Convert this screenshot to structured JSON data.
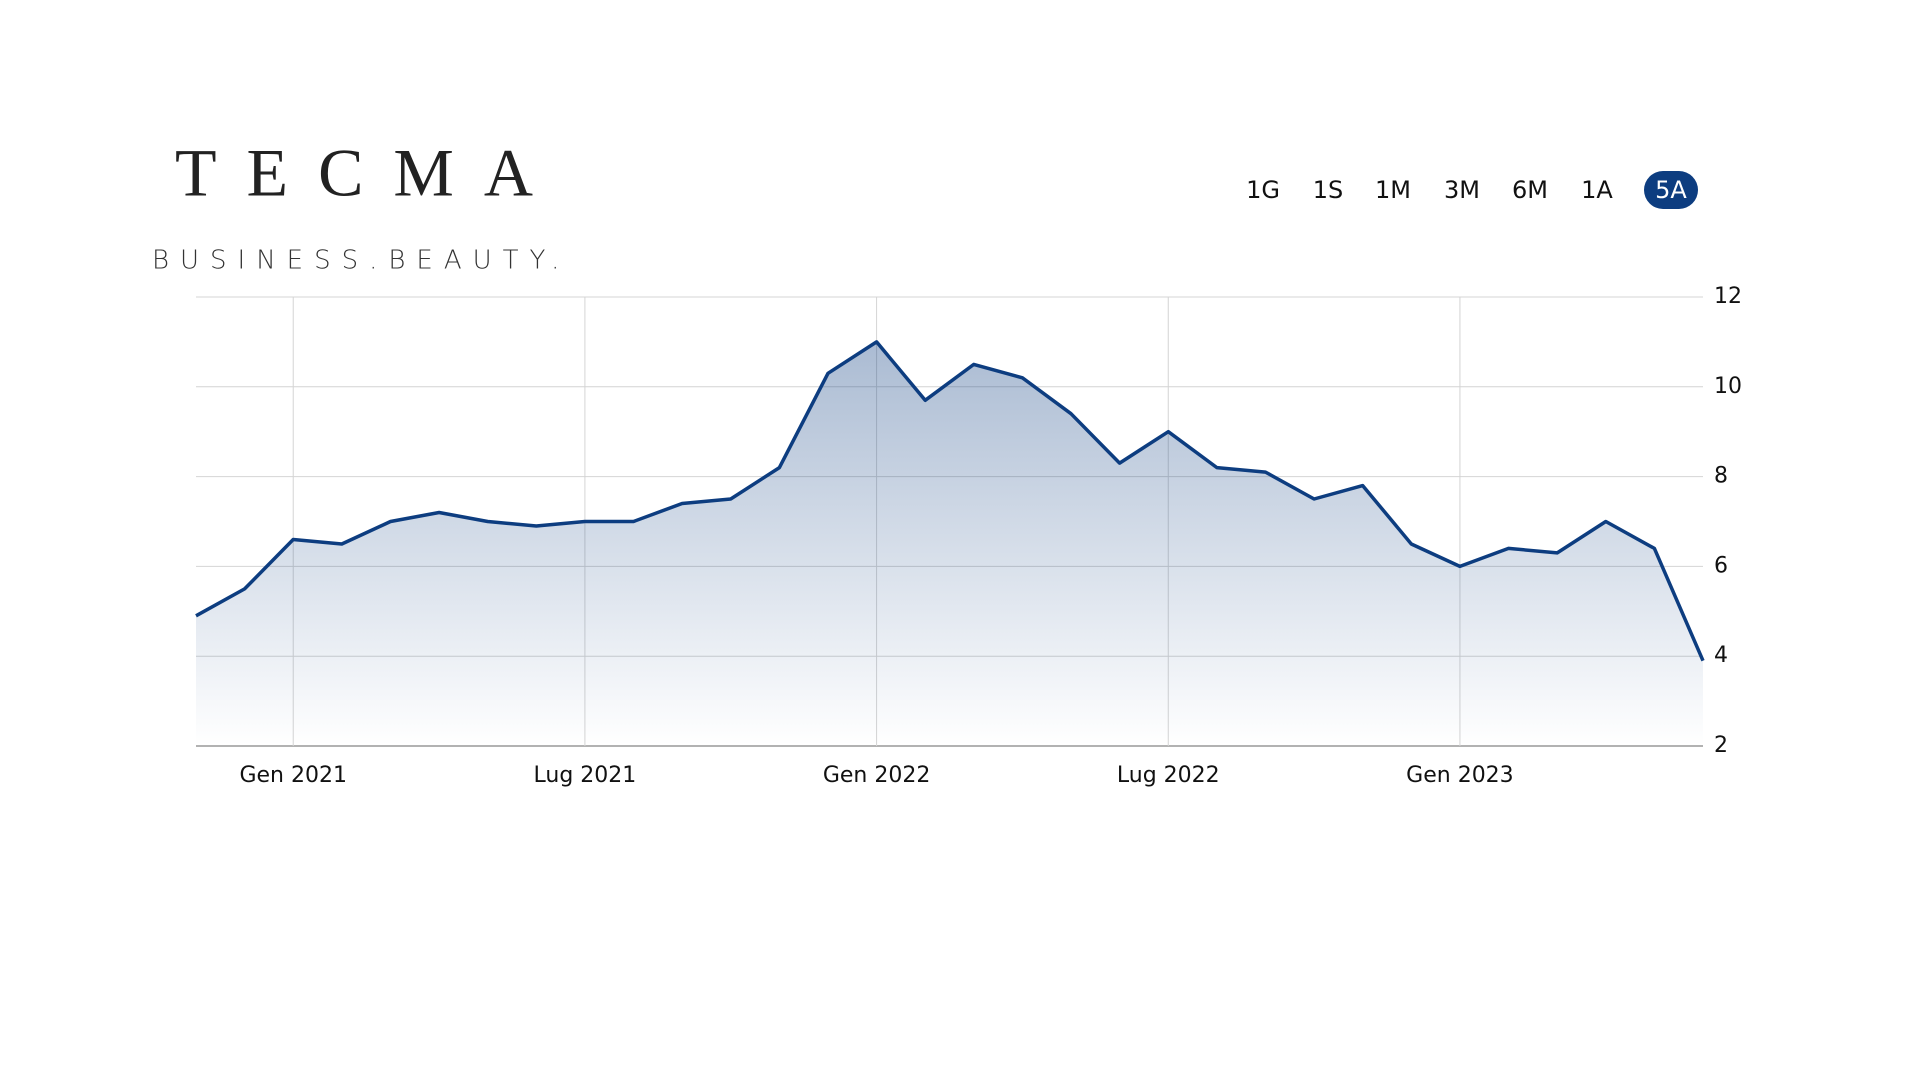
{
  "logo": {
    "name": "TECMA",
    "tagline": "BUSINESS.BEAUTY."
  },
  "range_buttons": [
    "1G",
    "1S",
    "1M",
    "3M",
    "6M",
    "1A",
    "5A"
  ],
  "active_range_index": 6,
  "chart_data": {
    "type": "line",
    "color": "#0d3d80",
    "grid": true,
    "x": [
      "2020-11",
      "2020-12",
      "2021-01",
      "2021-02",
      "2021-03",
      "2021-04",
      "2021-05",
      "2021-06",
      "2021-07",
      "2021-08",
      "2021-09",
      "2021-10",
      "2021-11",
      "2021-12",
      "2022-01",
      "2022-02",
      "2022-03",
      "2022-04",
      "2022-05",
      "2022-06",
      "2022-07",
      "2022-08",
      "2022-09",
      "2022-10",
      "2022-11",
      "2022-12",
      "2023-01",
      "2023-02",
      "2023-03",
      "2023-04",
      "2023-05",
      "2023-06"
    ],
    "values": [
      4.9,
      5.5,
      6.6,
      6.5,
      7.0,
      7.2,
      7.0,
      6.9,
      7.0,
      7.0,
      7.4,
      7.5,
      8.2,
      10.3,
      11.0,
      9.7,
      10.5,
      10.2,
      9.4,
      8.3,
      9.0,
      8.2,
      8.1,
      7.5,
      7.8,
      6.5,
      6.0,
      6.4,
      6.3,
      7.0,
      6.4,
      3.9
    ],
    "xlim": [
      "2020-11",
      "2023-06"
    ],
    "xticks": [
      {
        "value": "2021-01",
        "label": "Gen 2021"
      },
      {
        "value": "2021-07",
        "label": "Lug 2021"
      },
      {
        "value": "2022-01",
        "label": "Gen 2022"
      },
      {
        "value": "2022-07",
        "label": "Lug 2022"
      },
      {
        "value": "2023-01",
        "label": "Gen 2023"
      }
    ],
    "ylim": [
      2,
      12
    ],
    "yticks": [
      2,
      4,
      6,
      8,
      10,
      12
    ]
  }
}
